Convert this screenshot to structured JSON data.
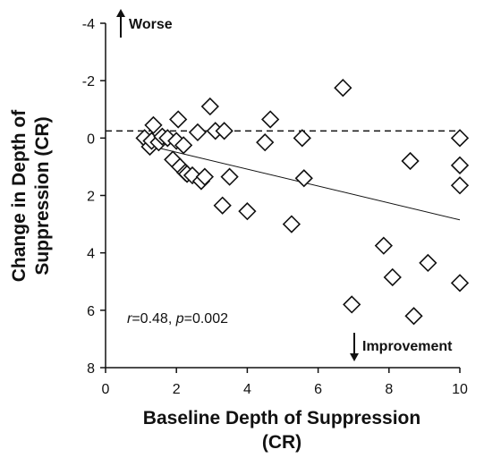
{
  "chart_data": {
    "type": "scatter",
    "xlabel_line1": "Baseline Depth of Suppression",
    "xlabel_line2": "(CR)",
    "ylabel_line1": "Change in Depth of",
    "ylabel_line2": "Suppression (CR)",
    "xlim": [
      0,
      10
    ],
    "ylim": [
      -4,
      8
    ],
    "y_axis_inverted": true,
    "x_ticks": [
      "0",
      "2",
      "4",
      "6",
      "8",
      "10"
    ],
    "y_ticks": [
      "-4",
      "-2",
      "0",
      "2",
      "4",
      "6",
      "8"
    ],
    "grid": false,
    "marker": "open-diamond",
    "reference_line": {
      "y": -0.25,
      "style": "dashed"
    },
    "trend_line": {
      "x": [
        1.0,
        10.0
      ],
      "y": [
        0.2,
        2.85
      ]
    },
    "annotations": {
      "up": "Worse",
      "down": "Improvement",
      "stat_r_symbol": "r",
      "stat_r_value": "=0.48, ",
      "stat_p_symbol": "p",
      "stat_p_value": "=0.002"
    },
    "x": [
      1.1,
      1.25,
      1.3,
      1.35,
      1.5,
      1.6,
      1.75,
      1.9,
      2.0,
      2.05,
      2.1,
      2.2,
      2.25,
      2.3,
      2.45,
      2.6,
      2.7,
      2.8,
      2.95,
      3.1,
      3.3,
      3.35,
      3.5,
      4.0,
      4.5,
      4.65,
      5.25,
      5.55,
      5.6,
      6.7,
      6.95,
      7.85,
      8.1,
      8.6,
      8.7,
      9.1,
      10.0,
      10.0,
      10.0,
      10.0
    ],
    "y": [
      0.0,
      0.3,
      0.1,
      -0.45,
      0.15,
      -0.05,
      0.0,
      0.75,
      0.1,
      -0.65,
      1.0,
      0.25,
      1.2,
      1.25,
      1.3,
      -0.2,
      1.5,
      1.35,
      -1.1,
      -0.25,
      2.35,
      -0.25,
      1.35,
      2.55,
      0.15,
      -0.65,
      3.0,
      0.0,
      1.4,
      -1.75,
      5.8,
      3.75,
      4.85,
      0.8,
      6.2,
      4.35,
      0.0,
      0.95,
      1.65,
      5.05
    ]
  }
}
